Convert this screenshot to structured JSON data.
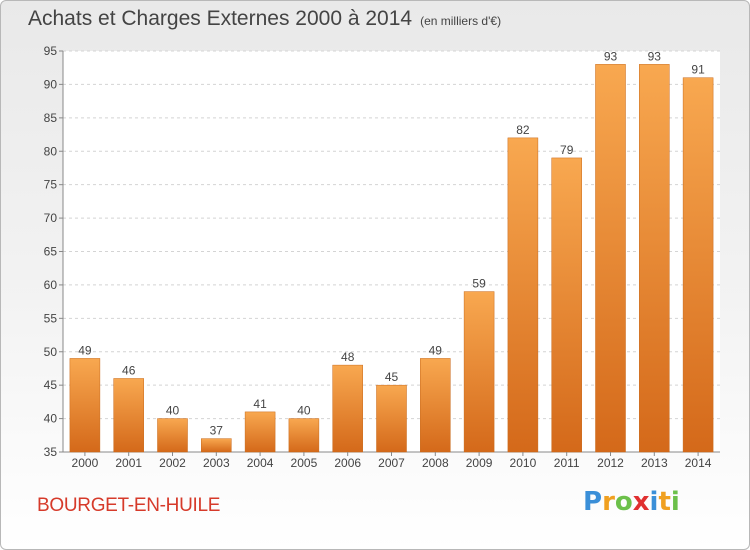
{
  "chart_data": {
    "type": "bar",
    "title": "Achats et Charges Externes 2000 à 2014",
    "subtitle": "(en milliers d'€)",
    "categories": [
      "2000",
      "2001",
      "2002",
      "2003",
      "2004",
      "2005",
      "2006",
      "2007",
      "2008",
      "2009",
      "2010",
      "2011",
      "2012",
      "2013",
      "2014"
    ],
    "values": [
      49,
      46,
      40,
      37,
      41,
      40,
      48,
      45,
      49,
      59,
      82,
      79,
      93,
      93,
      91
    ],
    "ylim": [
      35,
      95
    ],
    "yticks": [
      35,
      40,
      45,
      50,
      55,
      60,
      65,
      70,
      75,
      80,
      85,
      90,
      95
    ],
    "grid": true,
    "bar_color": "#f08a26"
  },
  "commune": "BOURGET-EN-HUILE",
  "logo": {
    "text": "Proxiti",
    "letters": [
      "P",
      "r",
      "o",
      "x",
      "i",
      "t",
      "i"
    ],
    "colors": [
      "#3a8fd8",
      "#f0a020",
      "#6cc04a",
      "#e03030",
      "#3a8fd8",
      "#f0a020",
      "#6cc04a"
    ]
  }
}
